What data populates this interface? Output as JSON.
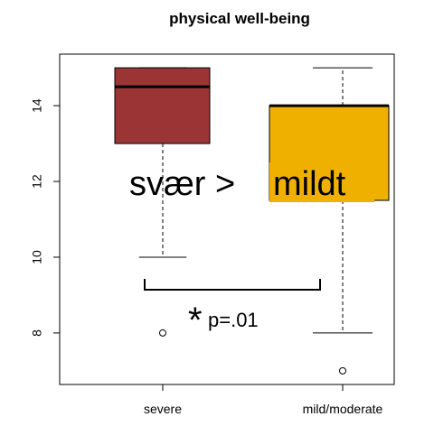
{
  "chart_data": {
    "type": "box",
    "title": "physical well-being",
    "categories": [
      "severe",
      "mild/moderate"
    ],
    "boxes": [
      {
        "whislo": 10,
        "q1": 13,
        "med": 14.5,
        "q3": 15,
        "whishi": 15,
        "fliers": [
          8
        ],
        "color": "#9b3535"
      },
      {
        "whislo": 8,
        "q1": 11.5,
        "med": 14,
        "q3": 14,
        "whishi": 15,
        "fliers": [
          7
        ],
        "color": "#f0b000"
      }
    ],
    "ylim": [
      6.64,
      15.36
    ],
    "yticks": [
      8,
      10,
      12,
      14
    ],
    "annotations": {
      "comparison_left": "svær >",
      "comparison_right": "mildt",
      "star": "*",
      "p": "p=.01"
    }
  }
}
